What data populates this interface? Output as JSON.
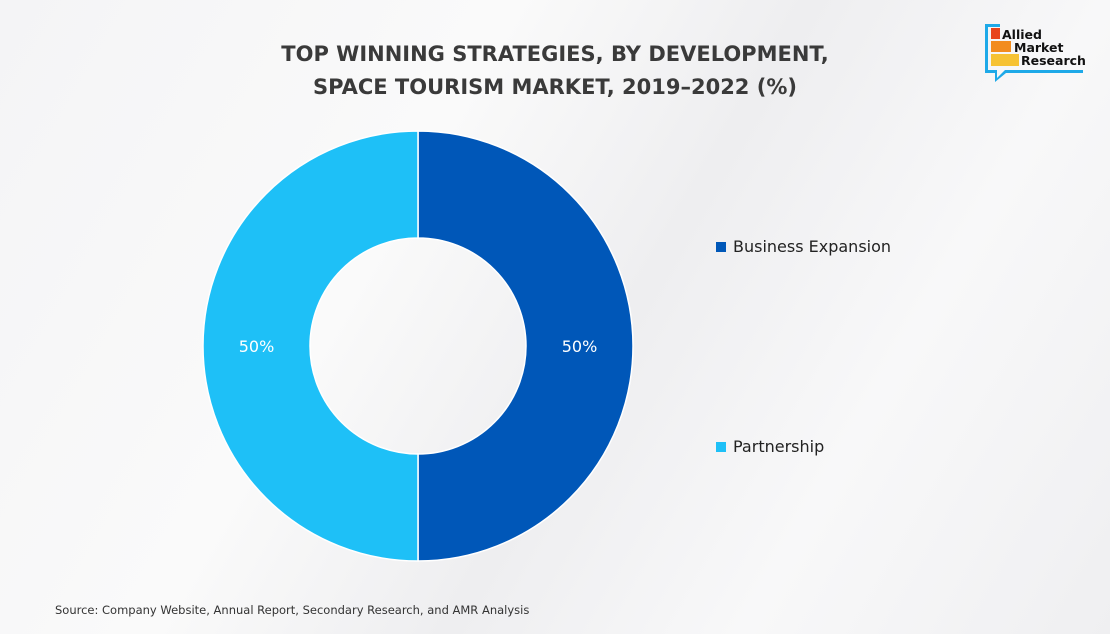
{
  "chart_data": {
    "type": "pie",
    "donut": true,
    "title": "TOP WINNING STRATEGIES, BY DEVELOPMENT, SPACE TOURISM MARKET, 2019–2022 (%)",
    "title_lines": [
      "TOP WINNING STRATEGIES, BY DEVELOPMENT,",
      "SPACE TOURISM MARKET, 2019–2022 (%)"
    ],
    "categories": [
      "Business Expansion",
      "Partnership"
    ],
    "values": [
      50,
      50
    ],
    "labels": [
      "50%",
      "50%"
    ],
    "colors": [
      "#0057B8",
      "#1EC0F7"
    ],
    "legend_placement": "right"
  },
  "source": "Source: Company Website, Annual Report, Secondary Research, and AMR Analysis",
  "logo": {
    "lines": [
      "Allied",
      "Market",
      "Research"
    ],
    "colors": [
      "#1EA9E8",
      "#E8431C",
      "#F28C1E",
      "#F6C233"
    ]
  }
}
